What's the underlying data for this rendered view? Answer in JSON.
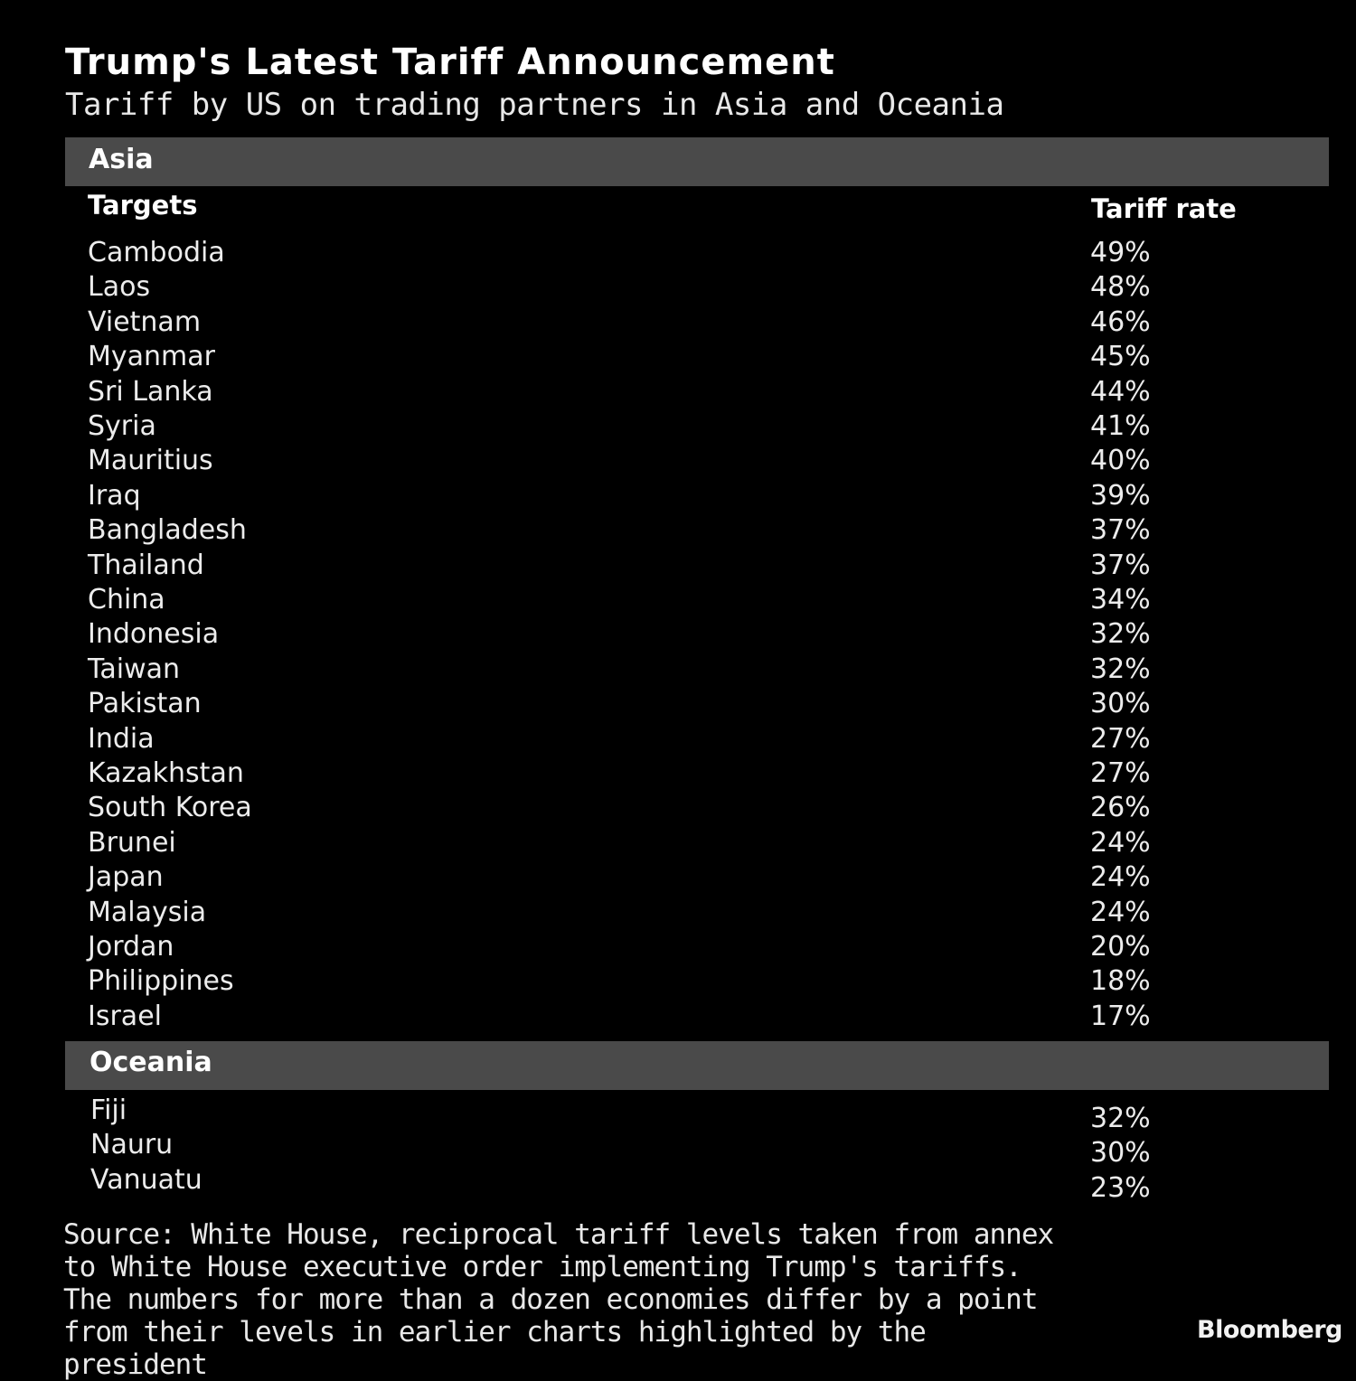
{
  "chart_data": {
    "type": "table",
    "title": "Trump's Latest Tariff Announcement",
    "subtitle": "Tariff by US on trading partners in Asia and Oceania",
    "columns": [
      "Targets",
      "Tariff rate"
    ],
    "sections": [
      {
        "name": "Asia",
        "rows": [
          {
            "target": "Cambodia",
            "rate": "49%",
            "value": 49
          },
          {
            "target": "Laos",
            "rate": "48%",
            "value": 48
          },
          {
            "target": "Vietnam",
            "rate": "46%",
            "value": 46
          },
          {
            "target": "Myanmar",
            "rate": "45%",
            "value": 45
          },
          {
            "target": "Sri Lanka",
            "rate": "44%",
            "value": 44
          },
          {
            "target": "Syria",
            "rate": "41%",
            "value": 41
          },
          {
            "target": "Mauritius",
            "rate": "40%",
            "value": 40
          },
          {
            "target": "Iraq",
            "rate": "39%",
            "value": 39
          },
          {
            "target": "Bangladesh",
            "rate": "37%",
            "value": 37
          },
          {
            "target": "Thailand",
            "rate": "37%",
            "value": 37
          },
          {
            "target": "China",
            "rate": "34%",
            "value": 34
          },
          {
            "target": "Indonesia",
            "rate": "32%",
            "value": 32
          },
          {
            "target": "Taiwan",
            "rate": "32%",
            "value": 32
          },
          {
            "target": "Pakistan",
            "rate": "30%",
            "value": 30
          },
          {
            "target": "India",
            "rate": "27%",
            "value": 27
          },
          {
            "target": "Kazakhstan",
            "rate": "27%",
            "value": 27
          },
          {
            "target": "South Korea",
            "rate": "26%",
            "value": 26
          },
          {
            "target": "Brunei",
            "rate": "24%",
            "value": 24
          },
          {
            "target": "Japan",
            "rate": "24%",
            "value": 24
          },
          {
            "target": "Malaysia",
            "rate": "24%",
            "value": 24
          },
          {
            "target": "Jordan",
            "rate": "20%",
            "value": 20
          },
          {
            "target": "Philippines",
            "rate": "18%",
            "value": 18
          },
          {
            "target": "Israel",
            "rate": "17%",
            "value": 17
          }
        ]
      },
      {
        "name": "Oceania",
        "rows": [
          {
            "target": "Fiji",
            "rate": "32%",
            "value": 32
          },
          {
            "target": "Nauru",
            "rate": "30%",
            "value": 30
          },
          {
            "target": "Vanuatu",
            "rate": "23%",
            "value": 23
          }
        ]
      }
    ],
    "source": "Source: White House, reciprocal tariff levels taken from annex to White House executive order implementing Trump's tariffs. The numbers for more than a dozen economies differ by a point from their levels in earlier charts highlighted by the president",
    "brand": "Bloomberg"
  }
}
